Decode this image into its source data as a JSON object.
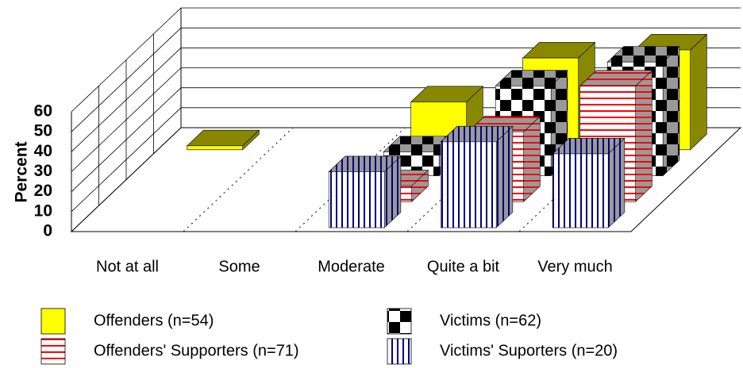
{
  "chart_data": {
    "type": "bar3d",
    "y_label": "Percent",
    "categories": [
      "Not at all",
      "Some",
      "Moderate",
      "Quite a bit",
      "Very much"
    ],
    "series": [
      {
        "name": "Offenders (n=54)",
        "color": "#ffff00",
        "pattern": "solid",
        "values": [
          2,
          0,
          24,
          46,
          50
        ]
      },
      {
        "name": "Offenders' Supporters (n=71)",
        "color": "#ff0000",
        "pattern": "hstripe",
        "values": [
          0,
          0,
          8,
          35,
          58
        ]
      },
      {
        "name": "Victims (n=62)",
        "color": "#000000",
        "pattern": "checker",
        "values": [
          0,
          0,
          12,
          45,
          57
        ]
      },
      {
        "name": "Victims' Suporters (n=20)",
        "color": "#000080",
        "pattern": "vstripe",
        "values": [
          0,
          0,
          28,
          43,
          37
        ]
      }
    ],
    "ylim": [
      0,
      60
    ],
    "yticks": [
      0,
      10,
      20,
      30,
      40,
      50,
      60
    ],
    "grid": true
  }
}
